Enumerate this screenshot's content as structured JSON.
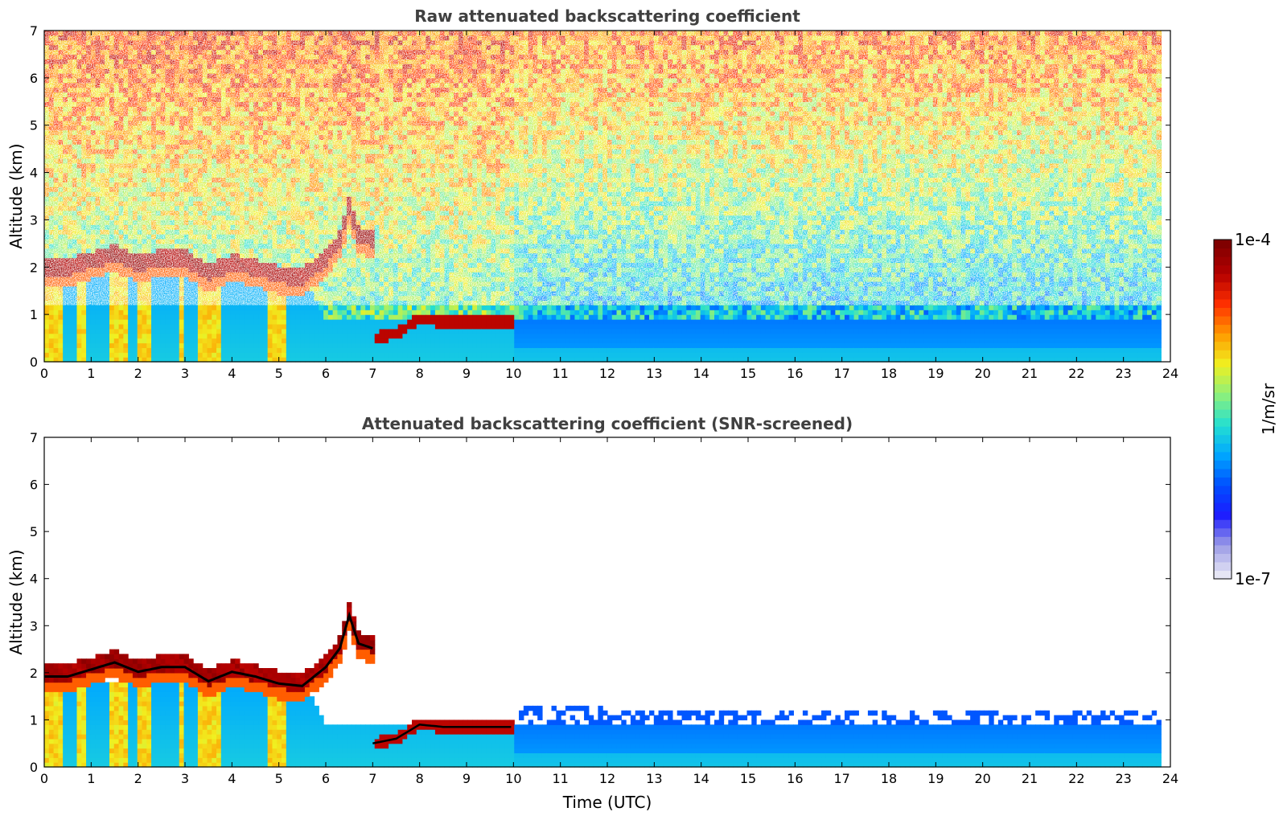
{
  "chart_data": [
    {
      "type": "heatmap",
      "title": "Raw attenuated backscattering coefficient",
      "xlabel": "",
      "ylabel": "Altitude (km)",
      "xlim": [
        0,
        24
      ],
      "ylim": [
        0,
        7
      ],
      "xticks": [
        "0",
        "1",
        "2",
        "3",
        "4",
        "5",
        "6",
        "7",
        "8",
        "9",
        "10",
        "11",
        "12",
        "13",
        "14",
        "15",
        "16",
        "17",
        "18",
        "19",
        "20",
        "21",
        "22",
        "23",
        "24"
      ],
      "yticks": [
        "0",
        "1",
        "2",
        "3",
        "4",
        "5",
        "6",
        "7"
      ],
      "screened": false
    },
    {
      "type": "heatmap",
      "title": "Attenuated backscattering coefficient (SNR-screened)",
      "xlabel": "Time (UTC)",
      "ylabel": "Altitude (km)",
      "xlim": [
        0,
        24
      ],
      "ylim": [
        0,
        7
      ],
      "xticks": [
        "0",
        "1",
        "2",
        "3",
        "4",
        "5",
        "6",
        "7",
        "8",
        "9",
        "10",
        "11",
        "12",
        "13",
        "14",
        "15",
        "16",
        "17",
        "18",
        "19",
        "20",
        "21",
        "22",
        "23",
        "24"
      ],
      "yticks": [
        "0",
        "1",
        "2",
        "3",
        "4",
        "5",
        "6",
        "7"
      ],
      "screened": true
    }
  ],
  "colorbar": {
    "label": "1/m/sr",
    "max_label": "1e-4",
    "min_label": "1e-7",
    "scale": "log",
    "colors": [
      "#e6e6f5",
      "#9a9ae6",
      "#1b1bff",
      "#0050ff",
      "#00a8ff",
      "#25e0d0",
      "#8ef07a",
      "#f0f020",
      "#ff9a00",
      "#ff3000",
      "#b40000",
      "#800000"
    ]
  },
  "features": {
    "cloud_layer_km": [
      [
        0,
        2.0
      ],
      [
        0.5,
        2.0
      ],
      [
        1.0,
        2.15
      ],
      [
        1.5,
        2.3
      ],
      [
        2.0,
        2.1
      ],
      [
        2.5,
        2.2
      ],
      [
        3.0,
        2.2
      ],
      [
        3.5,
        1.9
      ],
      [
        4.0,
        2.1
      ],
      [
        4.5,
        2.0
      ],
      [
        5.0,
        1.85
      ],
      [
        5.5,
        1.8
      ],
      [
        6.0,
        2.2
      ],
      [
        6.3,
        2.6
      ],
      [
        6.5,
        3.3
      ],
      [
        6.7,
        2.7
      ],
      [
        7.0,
        2.6
      ]
    ],
    "low_layer_km": [
      [
        7.0,
        0.5
      ],
      [
        7.5,
        0.6
      ],
      [
        8.0,
        0.9
      ],
      [
        8.5,
        0.85
      ],
      [
        9.0,
        0.85
      ],
      [
        9.5,
        0.85
      ],
      [
        10.0,
        0.85
      ]
    ],
    "boundary_layer_top_km": [
      [
        0,
        1.9
      ],
      [
        2,
        1.8
      ],
      [
        5.6,
        1.7
      ],
      [
        6,
        0.9
      ],
      [
        8,
        0.9
      ],
      [
        10,
        0.95
      ],
      [
        12,
        0.9
      ],
      [
        16,
        0.85
      ],
      [
        20,
        0.9
      ],
      [
        23.8,
        0.85
      ]
    ]
  }
}
